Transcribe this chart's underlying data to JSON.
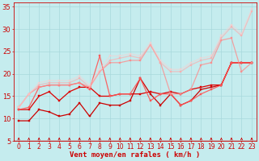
{
  "xlabel": "Vent moyen/en rafales ( km/h )",
  "bg_color": "#c5ecee",
  "grid_color": "#a8d8dc",
  "xlim": [
    -0.5,
    23.5
  ],
  "ylim": [
    5,
    36
  ],
  "yticks": [
    5,
    10,
    15,
    20,
    25,
    30,
    35
  ],
  "xticks": [
    0,
    1,
    2,
    3,
    4,
    5,
    6,
    7,
    8,
    9,
    10,
    11,
    12,
    13,
    14,
    15,
    16,
    17,
    18,
    19,
    20,
    21,
    22,
    23
  ],
  "lines": [
    {
      "x": [
        0,
        1,
        2,
        3,
        4,
        5,
        6,
        7,
        8,
        9,
        10,
        11,
        12,
        13,
        14,
        15,
        16,
        17,
        18,
        19,
        20,
        21,
        22,
        23
      ],
      "y": [
        9.5,
        9.5,
        12,
        11.5,
        10.5,
        11,
        13.5,
        10.5,
        13.5,
        13,
        13,
        14,
        19,
        15.5,
        13,
        15.5,
        13,
        14,
        16.5,
        17,
        17.5,
        22.5,
        22.5,
        22.5
      ],
      "color": "#cc0000",
      "lw": 0.9,
      "marker": "s",
      "ms": 2.0,
      "alpha": 1.0
    },
    {
      "x": [
        0,
        1,
        2,
        3,
        4,
        5,
        6,
        7,
        8,
        9,
        10,
        11,
        12,
        13,
        14,
        15,
        16,
        17,
        18,
        19,
        20,
        21,
        22,
        23
      ],
      "y": [
        12,
        12,
        15,
        16,
        14,
        16,
        17,
        17,
        15,
        15,
        15.5,
        15.5,
        15.5,
        16,
        15.5,
        16,
        15.5,
        16.5,
        17,
        17.5,
        17.5,
        22.5,
        22.5,
        22.5
      ],
      "color": "#dd0000",
      "lw": 0.9,
      "marker": "s",
      "ms": 2.0,
      "alpha": 1.0
    },
    {
      "x": [
        0,
        1,
        2,
        3,
        4,
        5,
        6,
        7,
        8,
        9,
        10,
        11,
        12,
        13,
        14,
        15,
        16,
        17,
        18,
        19,
        20,
        21,
        22,
        23
      ],
      "y": [
        12,
        12.5,
        17,
        17.5,
        17.5,
        17.5,
        18,
        16.5,
        24,
        15,
        15.5,
        15.5,
        19,
        14,
        15.5,
        15.5,
        13,
        14,
        15.5,
        16.5,
        17.5,
        22.5,
        22.5,
        22.5
      ],
      "color": "#ff5555",
      "lw": 0.9,
      "marker": "s",
      "ms": 2.0,
      "alpha": 0.9
    },
    {
      "x": [
        0,
        1,
        2,
        3,
        4,
        5,
        6,
        7,
        8,
        9,
        10,
        11,
        12,
        13,
        14,
        15,
        16,
        17,
        18,
        19,
        20,
        21,
        22,
        23
      ],
      "y": [
        12.5,
        15.5,
        17,
        17.5,
        17.5,
        17.5,
        18,
        17,
        20.5,
        22.5,
        22.5,
        23,
        23,
        26.5,
        22.5,
        15.5,
        15.5,
        16.5,
        22,
        22.5,
        27.5,
        28,
        20.5,
        22.5
      ],
      "color": "#ff8888",
      "lw": 0.9,
      "marker": "s",
      "ms": 2.0,
      "alpha": 0.75
    },
    {
      "x": [
        0,
        1,
        2,
        3,
        4,
        5,
        6,
        7,
        8,
        9,
        10,
        11,
        12,
        13,
        14,
        15,
        16,
        17,
        18,
        19,
        20,
        21,
        22,
        23
      ],
      "y": [
        12.5,
        15.5,
        17.5,
        18,
        18,
        18,
        19,
        17,
        20.5,
        23,
        23.5,
        24,
        23.5,
        26.5,
        22.5,
        20.5,
        20.5,
        22,
        23,
        23.5,
        28,
        30.5,
        28.5,
        34
      ],
      "color": "#ffaaaa",
      "lw": 0.9,
      "marker": "s",
      "ms": 2.0,
      "alpha": 0.65
    },
    {
      "x": [
        0,
        1,
        2,
        3,
        4,
        5,
        6,
        7,
        8,
        9,
        10,
        11,
        12,
        13,
        14,
        15,
        16,
        17,
        18,
        19,
        20,
        21,
        22,
        23
      ],
      "y": [
        12.5,
        15.5,
        18,
        18.5,
        18.5,
        18.5,
        19.5,
        17.5,
        21,
        24,
        24,
        24.5,
        24,
        27,
        23,
        21,
        21,
        22.5,
        23.5,
        24,
        28.5,
        31,
        29,
        34.5
      ],
      "color": "#ffcccc",
      "lw": 0.9,
      "marker": "s",
      "ms": 2.0,
      "alpha": 0.5
    }
  ],
  "arrow_color": "#cc0000",
  "xlabel_color": "#cc0000",
  "tick_color": "#cc0000",
  "tick_fontsize": 5.5,
  "label_fontsize": 6.5
}
